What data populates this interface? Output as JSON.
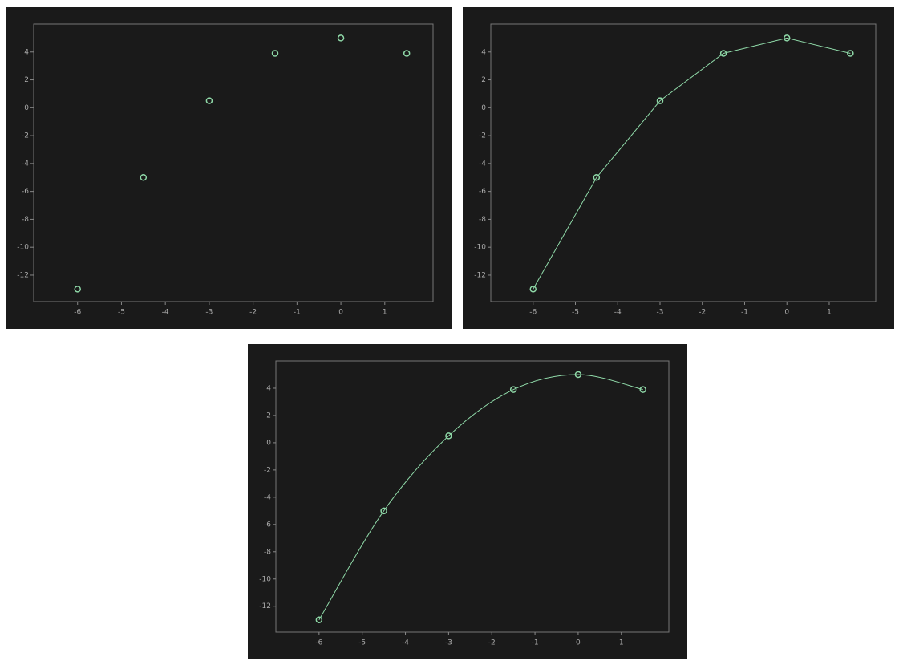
{
  "chart_data": [
    {
      "type": "scatter",
      "x": [
        -6,
        -4.5,
        -3,
        -1.5,
        0,
        1.5
      ],
      "y": [
        -13,
        -5,
        0.5,
        3.9,
        5,
        3.9
      ],
      "color": "#8fd9a8",
      "xlim": [
        -7,
        2.1
      ],
      "ylim": [
        -13.9,
        6
      ],
      "xticks": [
        -6,
        -5,
        -4,
        -3,
        -2,
        -1,
        0,
        1
      ],
      "yticks": [
        -12,
        -10,
        -8,
        -6,
        -4,
        -2,
        0,
        2,
        4
      ]
    },
    {
      "type": "line",
      "x": [
        -6,
        -4.5,
        -3,
        -1.5,
        0,
        1.5
      ],
      "y": [
        -13,
        -5,
        0.5,
        3.9,
        5,
        3.9
      ],
      "color": "#8fd9a8",
      "smooth": false,
      "xlim": [
        -7,
        2.1
      ],
      "ylim": [
        -13.9,
        6
      ],
      "xticks": [
        -6,
        -5,
        -4,
        -3,
        -2,
        -1,
        0,
        1
      ],
      "yticks": [
        -12,
        -10,
        -8,
        -6,
        -4,
        -2,
        0,
        2,
        4
      ]
    },
    {
      "type": "line",
      "x": [
        -6,
        -4.5,
        -3,
        -1.5,
        0,
        1.5
      ],
      "y": [
        -13,
        -5,
        0.5,
        3.9,
        5,
        3.9
      ],
      "color": "#8fd9a8",
      "smooth": true,
      "xlim": [
        -7,
        2.1
      ],
      "ylim": [
        -13.9,
        6
      ],
      "xticks": [
        -6,
        -5,
        -4,
        -3,
        -2,
        -1,
        0,
        1
      ],
      "yticks": [
        -12,
        -10,
        -8,
        -6,
        -4,
        -2,
        0,
        2,
        4
      ]
    }
  ]
}
